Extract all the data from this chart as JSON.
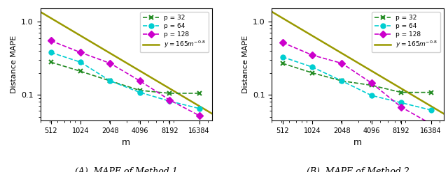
{
  "m_values": [
    512,
    1024,
    2048,
    4096,
    8192,
    16384
  ],
  "method1": {
    "p32": [
      0.28,
      0.21,
      0.155,
      0.115,
      0.105,
      0.105
    ],
    "p64": [
      0.38,
      0.28,
      0.155,
      0.108,
      0.082,
      0.065
    ],
    "p128": [
      0.55,
      0.38,
      0.27,
      0.155,
      0.085,
      0.052
    ]
  },
  "method2": {
    "p32": [
      0.27,
      0.2,
      0.155,
      0.135,
      0.108,
      0.108
    ],
    "p64": [
      0.33,
      0.24,
      0.155,
      0.098,
      0.078,
      0.062
    ],
    "p128": [
      0.52,
      0.35,
      0.27,
      0.145,
      0.068,
      0.04
    ]
  },
  "ref_curve_coef": 165,
  "ref_curve_exp": -0.8,
  "colors": {
    "p32": "#228B22",
    "p64": "#00CED1",
    "p128": "#CC00CC",
    "ref": "#999900"
  },
  "title1": "(A)  MAPE of Method 1",
  "title2": "(B)  MAPE of Method 2",
  "ylabel": "Distance MAPE",
  "xlabel": "m",
  "yticks": [
    0.1,
    1.0
  ],
  "ylim_log": [
    -1.35,
    0.18
  ],
  "xticks": [
    512,
    1024,
    2048,
    4096,
    8192,
    16384
  ],
  "xlim": [
    400,
    22000
  ]
}
